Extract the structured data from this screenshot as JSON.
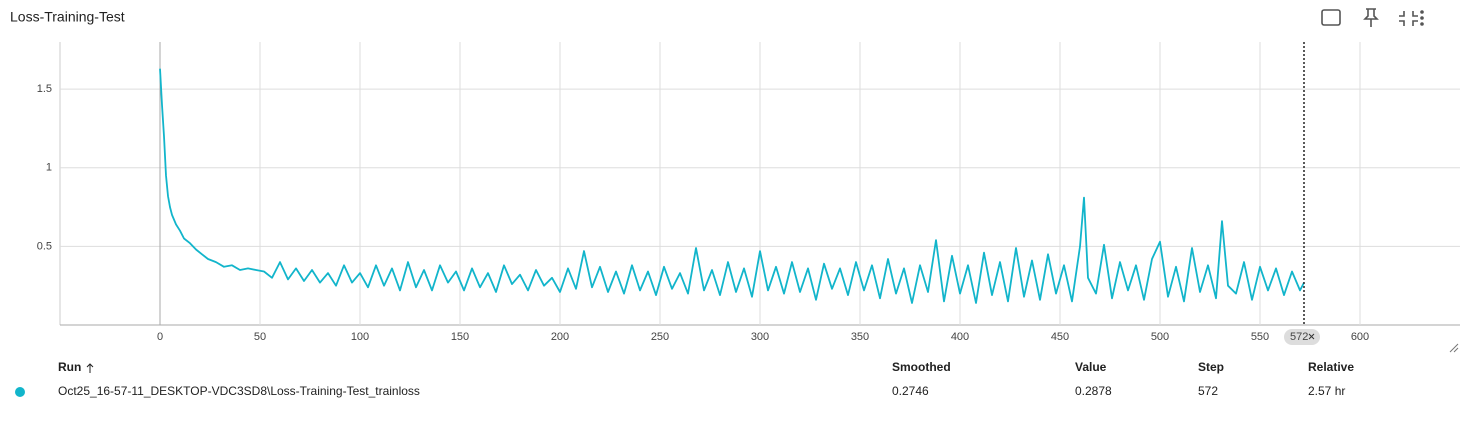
{
  "chart_data": {
    "type": "line",
    "title": "Loss-Training-Test",
    "x": [
      0,
      1,
      2,
      3,
      4,
      5,
      6,
      8,
      10,
      12,
      15,
      18,
      21,
      24,
      28,
      32,
      36,
      40,
      44,
      48,
      52,
      56,
      60,
      64,
      68,
      72,
      76,
      80,
      84,
      88,
      92,
      96,
      100,
      104,
      108,
      112,
      116,
      120,
      124,
      128,
      132,
      136,
      140,
      144,
      148,
      152,
      156,
      160,
      164,
      168,
      172,
      176,
      180,
      184,
      188,
      192,
      196,
      200,
      204,
      208,
      212,
      216,
      220,
      224,
      228,
      232,
      236,
      240,
      244,
      248,
      252,
      256,
      260,
      264,
      268,
      272,
      276,
      280,
      284,
      288,
      292,
      296,
      300,
      304,
      308,
      312,
      316,
      320,
      324,
      328,
      332,
      336,
      340,
      344,
      348,
      352,
      356,
      360,
      364,
      368,
      372,
      376,
      380,
      384,
      388,
      392,
      396,
      400,
      404,
      408,
      412,
      416,
      420,
      424,
      428,
      432,
      436,
      440,
      444,
      448,
      452,
      456,
      460,
      462,
      464,
      468,
      472,
      476,
      480,
      484,
      488,
      492,
      496,
      500,
      504,
      508,
      512,
      516,
      520,
      524,
      528,
      531,
      534,
      538,
      542,
      546,
      550,
      554,
      558,
      562,
      566,
      570,
      572
    ],
    "series": [
      {
        "name": "Oct25_16-57-11_DESKTOP-VDC3SD8\\Loss-Training-Test_trainloss",
        "color": "#12b5cb",
        "values": [
          1.63,
          1.4,
          1.2,
          0.95,
          0.82,
          0.75,
          0.7,
          0.64,
          0.6,
          0.55,
          0.52,
          0.48,
          0.45,
          0.42,
          0.4,
          0.37,
          0.38,
          0.35,
          0.36,
          0.35,
          0.34,
          0.3,
          0.4,
          0.29,
          0.36,
          0.28,
          0.35,
          0.27,
          0.33,
          0.25,
          0.38,
          0.27,
          0.33,
          0.24,
          0.38,
          0.25,
          0.36,
          0.22,
          0.4,
          0.24,
          0.35,
          0.22,
          0.38,
          0.27,
          0.34,
          0.22,
          0.36,
          0.24,
          0.33,
          0.21,
          0.38,
          0.26,
          0.32,
          0.22,
          0.35,
          0.25,
          0.3,
          0.21,
          0.36,
          0.23,
          0.47,
          0.24,
          0.37,
          0.21,
          0.34,
          0.2,
          0.38,
          0.22,
          0.34,
          0.19,
          0.37,
          0.23,
          0.33,
          0.2,
          0.49,
          0.22,
          0.35,
          0.19,
          0.4,
          0.21,
          0.36,
          0.18,
          0.47,
          0.22,
          0.37,
          0.2,
          0.4,
          0.21,
          0.36,
          0.16,
          0.39,
          0.23,
          0.36,
          0.19,
          0.4,
          0.22,
          0.38,
          0.17,
          0.42,
          0.2,
          0.36,
          0.14,
          0.38,
          0.21,
          0.54,
          0.15,
          0.44,
          0.2,
          0.38,
          0.14,
          0.46,
          0.19,
          0.4,
          0.15,
          0.49,
          0.18,
          0.41,
          0.16,
          0.45,
          0.2,
          0.38,
          0.15,
          0.5,
          0.81,
          0.3,
          0.2,
          0.51,
          0.17,
          0.4,
          0.22,
          0.38,
          0.16,
          0.42,
          0.53,
          0.18,
          0.37,
          0.15,
          0.49,
          0.21,
          0.38,
          0.17,
          0.66,
          0.25,
          0.2,
          0.4,
          0.16,
          0.37,
          0.22,
          0.36,
          0.19,
          0.34,
          0.22,
          0.27
        ]
      }
    ],
    "xlim": [
      -50,
      650
    ],
    "xticks": [
      0,
      50,
      100,
      150,
      200,
      250,
      300,
      350,
      400,
      450,
      500,
      550,
      600
    ],
    "ylim": [
      0,
      1.8
    ],
    "yticks": [
      0.5,
      1,
      1.5
    ],
    "grid": true,
    "cursor": 572
  },
  "table": {
    "headers": [
      "Run",
      "Smoothed",
      "Value",
      "Step",
      "Relative"
    ],
    "rows": [
      [
        "Oct25_16-57-11_DESKTOP-VDC3SD8\\Loss-Training-Test_trainloss",
        "0.2746",
        "0.2878",
        "572",
        "2.57 hr"
      ]
    ]
  }
}
